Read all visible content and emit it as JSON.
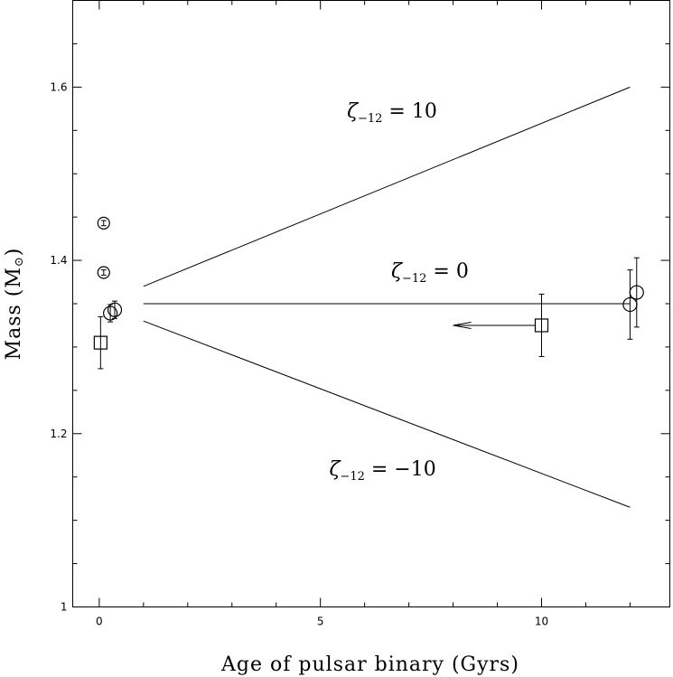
{
  "chart_data": {
    "type": "scatter",
    "xlabel": "Age of pulsar binary (Gyrs)",
    "ylabel": "Mass (M",
    "ylabel_symbol": "⊙",
    "ylabel_close": ")",
    "xlim": [
      -0.6,
      12.9
    ],
    "ylim": [
      1.0,
      1.7
    ],
    "x_ticks": [
      0,
      5,
      10
    ],
    "x_tick_labels": [
      "0",
      "5",
      "10"
    ],
    "y_ticks": [
      1.0,
      1.2,
      1.4,
      1.6
    ],
    "y_tick_labels": [
      "1",
      "1.2",
      "1.4",
      "1.6"
    ],
    "y_minor_ticks": [
      1.05,
      1.1,
      1.15,
      1.25,
      1.3,
      1.35,
      1.45,
      1.5,
      1.55,
      1.65
    ],
    "x_minor_ticks": [
      1,
      2,
      3,
      4,
      6,
      7,
      8,
      9,
      11,
      12
    ],
    "lines": [
      {
        "x": [
          1,
          12
        ],
        "y": [
          1.37,
          1.6
        ],
        "label_main": "ζ",
        "label_sub": "−12",
        "label_rest": " = 10",
        "label_x": 5.6,
        "label_y": 1.565
      },
      {
        "x": [
          1,
          12
        ],
        "y": [
          1.35,
          1.35
        ],
        "label_main": "ζ",
        "label_sub": "−12",
        "label_rest": " = 0",
        "label_x": 6.6,
        "label_y": 1.38
      },
      {
        "x": [
          1,
          12
        ],
        "y": [
          1.33,
          1.115
        ],
        "label_main": "ζ",
        "label_sub": "−12",
        "label_rest": " = −10",
        "label_x": 5.2,
        "label_y": 1.152
      }
    ],
    "points": [
      {
        "marker": "circle-small",
        "x": 0.1,
        "y": 1.443,
        "yerr": 0.003
      },
      {
        "marker": "circle-small",
        "x": 0.1,
        "y": 1.386,
        "yerr": 0.003
      },
      {
        "marker": "circle",
        "x": 0.25,
        "y": 1.339,
        "yerr": 0.01
      },
      {
        "marker": "circle",
        "x": 0.35,
        "y": 1.343,
        "yerr": 0.01
      },
      {
        "marker": "square",
        "x": 0.03,
        "y": 1.305,
        "yerr": 0.03
      },
      {
        "marker": "square",
        "x": 10.0,
        "y": 1.325,
        "yerr": 0.036,
        "arrow_to_x": 8.0
      },
      {
        "marker": "circle",
        "x": 12.0,
        "y": 1.349,
        "yerr": 0.04
      },
      {
        "marker": "circle",
        "x": 12.15,
        "y": 1.363,
        "yerr": 0.04
      }
    ]
  }
}
